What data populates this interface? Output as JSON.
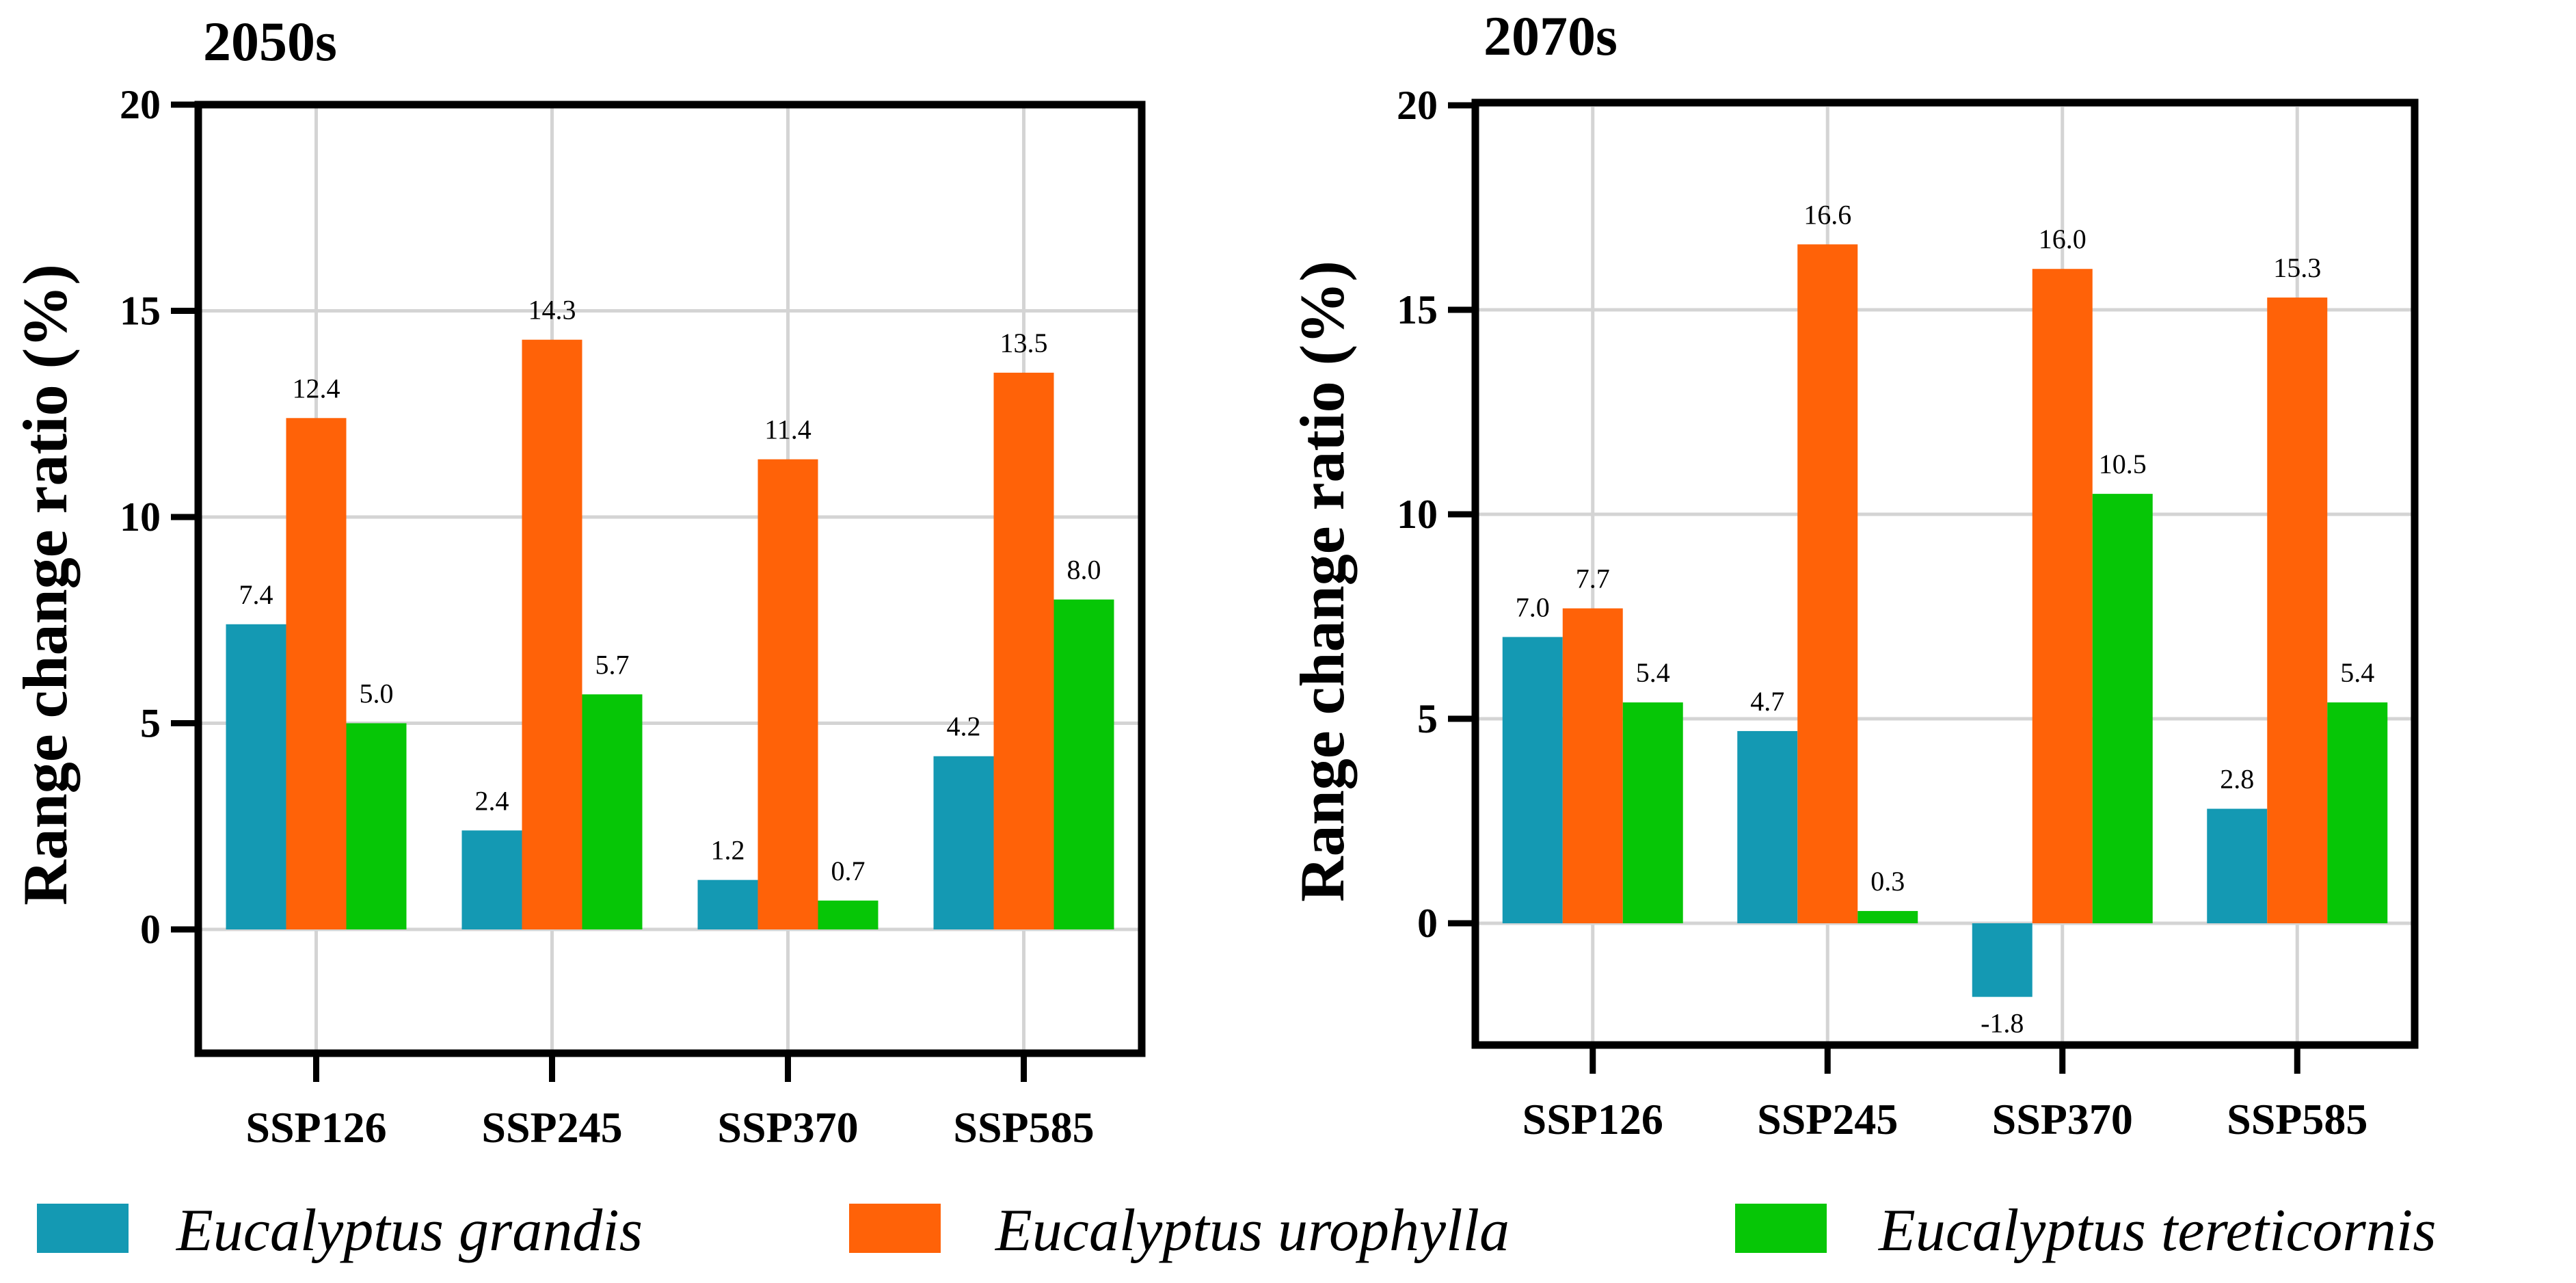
{
  "chart_data": [
    {
      "type": "bar",
      "title": "2050s",
      "ylabel": "Range change ratio (%)",
      "xlabel": "",
      "categories": [
        "SSP126",
        "SSP245",
        "SSP370",
        "SSP585"
      ],
      "ylim": [
        -3,
        20
      ],
      "yticks": [
        0,
        5,
        10,
        15,
        20
      ],
      "grid": true,
      "series": [
        {
          "name": "Eucalyptus grandis",
          "color": "#1499b3",
          "values": [
            7.4,
            2.4,
            1.2,
            4.2
          ],
          "labels": [
            "7.4",
            "2.4",
            "1.2",
            "4.2"
          ]
        },
        {
          "name": "Eucalyptus urophylla",
          "color": "#ff6208",
          "values": [
            12.4,
            14.3,
            11.4,
            13.5
          ],
          "labels": [
            "12.4",
            "14.3",
            "11.4",
            "13.5"
          ]
        },
        {
          "name": "Eucalyptus tereticornis",
          "color": "#06c606",
          "values": [
            5.0,
            5.7,
            0.7,
            8.0
          ],
          "labels": [
            "5.0",
            "5.7",
            "0.7",
            "8.0"
          ]
        }
      ]
    },
    {
      "type": "bar",
      "title": "2070s",
      "ylabel": "Range change ratio (%)",
      "xlabel": "",
      "categories": [
        "SSP126",
        "SSP245",
        "SSP370",
        "SSP585"
      ],
      "ylim": [
        -3,
        20
      ],
      "yticks": [
        0,
        5,
        10,
        15,
        20
      ],
      "grid": true,
      "series": [
        {
          "name": "Eucalyptus grandis",
          "color": "#1499b3",
          "values": [
            7.0,
            4.7,
            -1.8,
            2.8
          ],
          "labels": [
            "7.0",
            "4.7",
            "-1.8",
            "2.8"
          ]
        },
        {
          "name": "Eucalyptus urophylla",
          "color": "#ff6208",
          "values": [
            7.7,
            16.6,
            16.0,
            15.3
          ],
          "labels": [
            "7.7",
            "16.6",
            "16.0",
            "15.3"
          ]
        },
        {
          "name": "Eucalyptus tereticornis",
          "color": "#06c606",
          "values": [
            5.4,
            0.3,
            10.5,
            5.4
          ],
          "labels": [
            "5.4",
            "0.3",
            "10.5",
            "5.4"
          ]
        }
      ]
    }
  ],
  "legend": {
    "position": "bottom",
    "items": [
      {
        "label": "Eucalyptus grandis",
        "color": "#1499b3"
      },
      {
        "label": "Eucalyptus urophylla",
        "color": "#ff6208"
      },
      {
        "label": "Eucalyptus tereticornis",
        "color": "#06c606"
      }
    ]
  }
}
